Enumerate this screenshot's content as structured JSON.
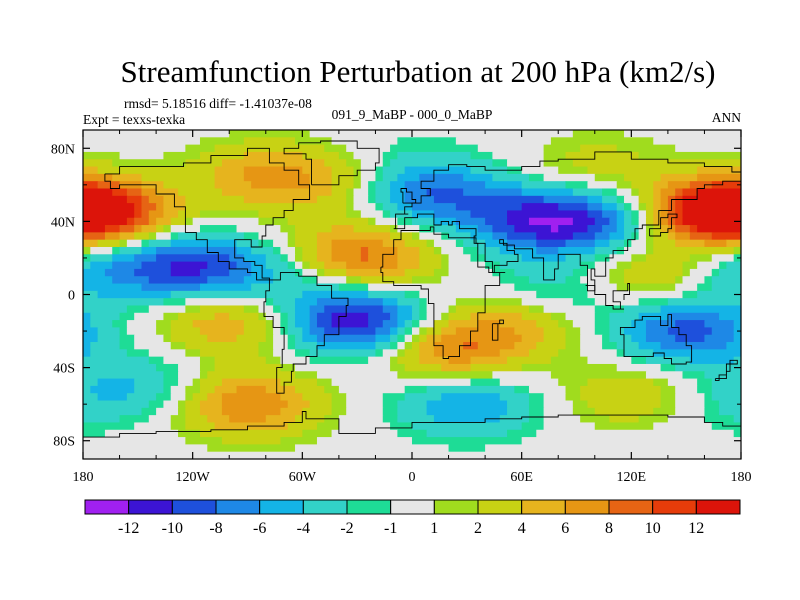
{
  "chart_data": {
    "type": "heatmap",
    "title": "Streamfunction Perturbation at 200 hPa (km2/s)",
    "stats_text": "rmsd= 5.18516 diff= -1.41037e-08",
    "left_label": "Expt = texxs-texka",
    "center_label": "091_9_MaBP - 000_0_MaBP",
    "right_label": "ANN",
    "x_ticks": [
      "180",
      "120W",
      "60W",
      "0",
      "60E",
      "120E",
      "180"
    ],
    "y_ticks": [
      "80N",
      "40N",
      "0",
      "40S",
      "80S"
    ],
    "xlim": [
      -180,
      180
    ],
    "ylim": [
      -90,
      90
    ],
    "colorbar": {
      "labels": [
        "-12",
        "-10",
        "-8",
        "-6",
        "-4",
        "-2",
        "-1",
        "1",
        "2",
        "4",
        "6",
        "8",
        "10",
        "12"
      ],
      "colors": [
        "#a020f0",
        "#3c14d4",
        "#1e50dc",
        "#1e88e6",
        "#14b4e6",
        "#32d2c8",
        "#1edc96",
        "#e6e6e6",
        "#a0dc1e",
        "#c8d214",
        "#e6b41e",
        "#e69614",
        "#e66414",
        "#e63c0a",
        "#dc140a"
      ]
    },
    "field_centers": [
      {
        "lon": -170,
        "lat": 45,
        "value": 12
      },
      {
        "lon": -120,
        "lat": 15,
        "value": -10
      },
      {
        "lon": -175,
        "lat": 15,
        "value": -5
      },
      {
        "lon": -100,
        "lat": -15,
        "value": 6
      },
      {
        "lon": -30,
        "lat": -15,
        "value": -12
      },
      {
        "lon": -30,
        "lat": 20,
        "value": 10
      },
      {
        "lon": -80,
        "lat": 65,
        "value": 6
      },
      {
        "lon": -40,
        "lat": 60,
        "value": 3
      },
      {
        "lon": 10,
        "lat": 55,
        "value": -8
      },
      {
        "lon": 70,
        "lat": 40,
        "value": -10
      },
      {
        "lon": 110,
        "lat": 40,
        "value": -6
      },
      {
        "lon": 160,
        "lat": 45,
        "value": 12
      },
      {
        "lon": 130,
        "lat": 10,
        "value": 5
      },
      {
        "lon": 20,
        "lat": -30,
        "value": 8
      },
      {
        "lon": 150,
        "lat": -20,
        "value": -9
      },
      {
        "lon": -90,
        "lat": -60,
        "value": 8
      },
      {
        "lon": 30,
        "lat": -60,
        "value": -6
      },
      {
        "lon": 120,
        "lat": -55,
        "value": 4
      },
      {
        "lon": 80,
        "lat": 0,
        "value": -4
      },
      {
        "lon": -150,
        "lat": -50,
        "value": -4
      },
      {
        "lon": 60,
        "lat": -15,
        "value": 5
      },
      {
        "lon": -60,
        "lat": 10,
        "value": -4
      },
      {
        "lon": 0,
        "lat": 75,
        "value": -1
      },
      {
        "lon": 100,
        "lat": 70,
        "value": 3
      },
      {
        "lon": 170,
        "lat": -60,
        "value": -2
      }
    ]
  }
}
